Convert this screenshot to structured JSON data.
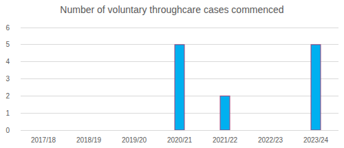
{
  "chart_data": {
    "type": "bar",
    "title": "Number of voluntary throughcare cases commenced",
    "categories": [
      "2017/18",
      "2018/19",
      "2019/20",
      "2020/21",
      "2021/22",
      "2022/23",
      "2023/24"
    ],
    "values": [
      0,
      0,
      0,
      5,
      2,
      0,
      5
    ],
    "color": "#00b0f0",
    "ylim": [
      0,
      6
    ],
    "yticks": [
      0,
      1,
      2,
      3,
      4,
      5,
      6
    ],
    "grid": true
  }
}
